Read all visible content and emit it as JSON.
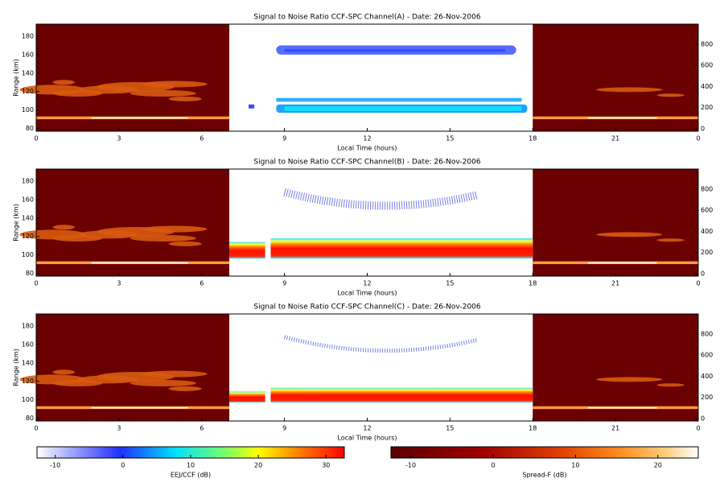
{
  "chart_data": [
    {
      "type": "heatmap",
      "title": "Signal to Noise Ratio CCF-SPC Channel(A) - Date: 26-Nov-2006",
      "x_label": "Local Time (hours)",
      "y_label": "Range (km)",
      "xlim": [
        0,
        24
      ],
      "xticks": [
        0,
        3,
        6,
        9,
        12,
        15,
        18,
        21,
        {
          "value": 24,
          "label": "0"
        }
      ],
      "ylim": [
        77,
        193
      ],
      "yticks": [
        80,
        100,
        120,
        140,
        160,
        180
      ],
      "y2lim": [
        -23,
        990
      ],
      "y2ticks": [
        0,
        200,
        400,
        600,
        800
      ]
    },
    {
      "type": "heatmap",
      "title": "Signal to Noise Ratio CCF-SPC Channel(B) - Date: 26-Nov-2006",
      "x_label": "Local Time (hours)",
      "y_label": "Range (km)",
      "xlim": [
        0,
        24
      ],
      "xticks": [
        0,
        3,
        6,
        9,
        12,
        15,
        18,
        21,
        {
          "value": 24,
          "label": "0"
        }
      ],
      "ylim": [
        77,
        193
      ],
      "yticks": [
        80,
        100,
        120,
        140,
        160,
        180
      ],
      "y2lim": [
        -23,
        990
      ],
      "y2ticks": [
        0,
        200,
        400,
        600,
        800
      ]
    },
    {
      "type": "heatmap",
      "title": "Signal to Noise Ratio CCF-SPC Channel(C) - Date: 26-Nov-2006",
      "x_label": "Local Time (hours)",
      "y_label": "Range (km)",
      "xlim": [
        0,
        24
      ],
      "xticks": [
        0,
        3,
        6,
        9,
        12,
        15,
        18,
        21,
        {
          "value": 24,
          "label": "0"
        }
      ],
      "ylim": [
        77,
        193
      ],
      "yticks": [
        80,
        100,
        120,
        140,
        160,
        180
      ],
      "y2lim": [
        -23,
        990
      ],
      "y2ticks": [
        0,
        200,
        400,
        600,
        800
      ]
    },
    {
      "type": "colorbar",
      "label": "EEJ/CCF (dB)",
      "xlim": [
        -12.7,
        32.7
      ],
      "xticks": [
        -10,
        0,
        10,
        20,
        30
      ]
    },
    {
      "type": "colorbar",
      "label": "Spread-F (dB)",
      "xlim": [
        -12.4,
        24.9
      ],
      "xticks": [
        -10,
        0,
        10,
        20
      ]
    }
  ]
}
